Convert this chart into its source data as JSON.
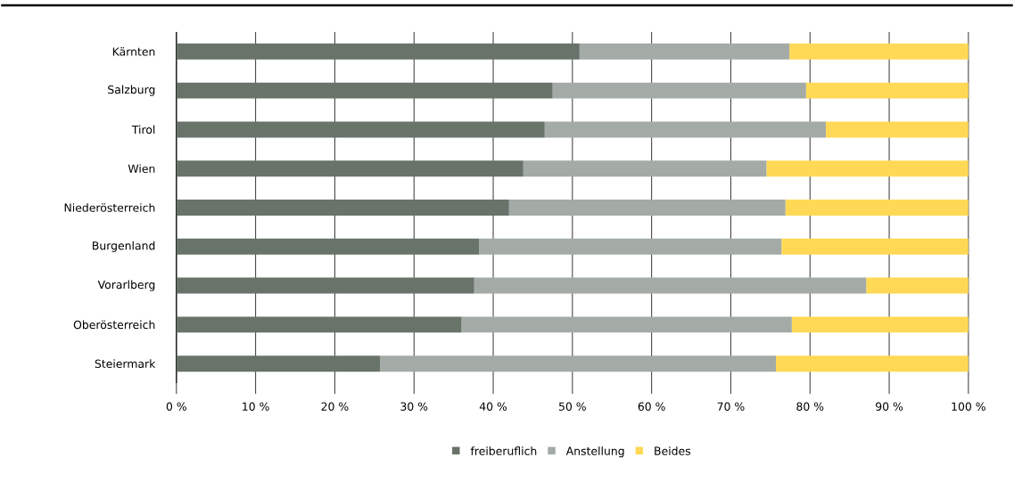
{
  "chart_data": {
    "type": "bar",
    "orientation": "horizontal",
    "stacked": true,
    "categories": [
      "Kärnten",
      "Salzburg",
      "Tirol",
      "Wien",
      "Niederösterreich",
      "Burgenland",
      "Vorarlberg",
      "Oberösterreich",
      "Steiermark"
    ],
    "series": [
      {
        "name": "freiberuflich",
        "color": "#68736a",
        "values": [
          50.9,
          47.5,
          46.5,
          43.8,
          42.0,
          38.2,
          37.6,
          36.0,
          25.7
        ]
      },
      {
        "name": "Anstellung",
        "color": "#a4aba6",
        "values": [
          26.5,
          32.0,
          35.5,
          30.7,
          34.9,
          38.2,
          49.5,
          41.7,
          50.0
        ]
      },
      {
        "name": "Beides",
        "color": "#ffd955",
        "values": [
          22.6,
          20.5,
          18.0,
          25.5,
          23.1,
          23.6,
          12.9,
          22.3,
          24.3
        ]
      }
    ],
    "xlim": [
      0,
      100
    ],
    "xticks": [
      {
        "value": 0,
        "label": "0 %"
      },
      {
        "value": 10,
        "label": "10 %"
      },
      {
        "value": 20,
        "label": "20 %"
      },
      {
        "value": 30,
        "label": "30 %"
      },
      {
        "value": 40,
        "label": "40 %"
      },
      {
        "value": 50,
        "label": "50 %"
      },
      {
        "value": 60,
        "label": "60 %"
      },
      {
        "value": 70,
        "label": "70 %"
      },
      {
        "value": 80,
        "label": "80 %"
      },
      {
        "value": 90,
        "label": "90 %"
      },
      {
        "value": 100,
        "label": "100 %"
      }
    ],
    "grid": "x",
    "legend": "bottom"
  }
}
